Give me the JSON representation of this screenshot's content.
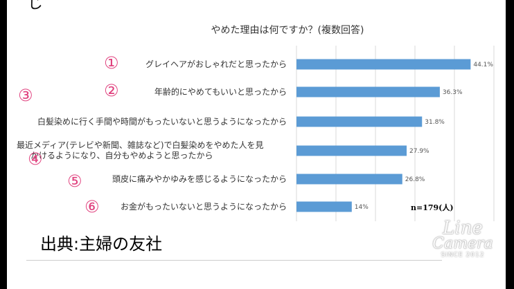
{
  "partial_heading": "じ",
  "source_note": "出典:主婦の友社",
  "sample_note": "n=179(人)",
  "watermark": {
    "line1": "Line",
    "line2": "Camera",
    "line3": "SINCE 2012"
  },
  "colors": {
    "bar": "#5b9bd5",
    "marker": "#e0417e",
    "grid": "#d9d9d9"
  },
  "chart_data": {
    "type": "bar",
    "orientation": "horizontal",
    "title": "やめた理由は何ですか？(複数回答)",
    "markers": [
      "①",
      "②",
      "③",
      "④",
      "⑤",
      "⑥"
    ],
    "categories": [
      "グレイヘアがおしゃれだと思ったから",
      "年齢的にやめてもいいと思ったから",
      "白髪染めに行く手間や時間がもったいないと思うようになったから",
      "最近メディア(テレビや新聞、雑誌など)で白髪染めをやめた人を見かけるようになり、自分もやめようと思ったから",
      "頭皮に痛みやかゆみを感じるようになったから",
      "お金がもったいないと思うようになったから"
    ],
    "category_lines": [
      [
        "グレイヘアがおしゃれだと思ったから"
      ],
      [
        "年齢的にやめてもいいと思ったから"
      ],
      [
        "白髪染めに行く手間や時間がもったいないと思うようになったから"
      ],
      [
        "最近メディア(テレビや新聞、雑誌など)で白髪染めをやめた人を見",
        "かけるようになり、自分もやめようと思ったから"
      ],
      [
        "頭皮に痛みやかゆみを感じるようになったから"
      ],
      [
        "お金がもったいないと思うようになったから"
      ]
    ],
    "values": [
      44.1,
      36.3,
      31.8,
      27.9,
      26.8,
      14
    ],
    "value_labels": [
      "44.1%",
      "36.3%",
      "31.8%",
      "27.9%",
      "26.8%",
      "14%"
    ],
    "xlim": [
      0,
      50
    ],
    "grid": true,
    "legend": "none"
  }
}
